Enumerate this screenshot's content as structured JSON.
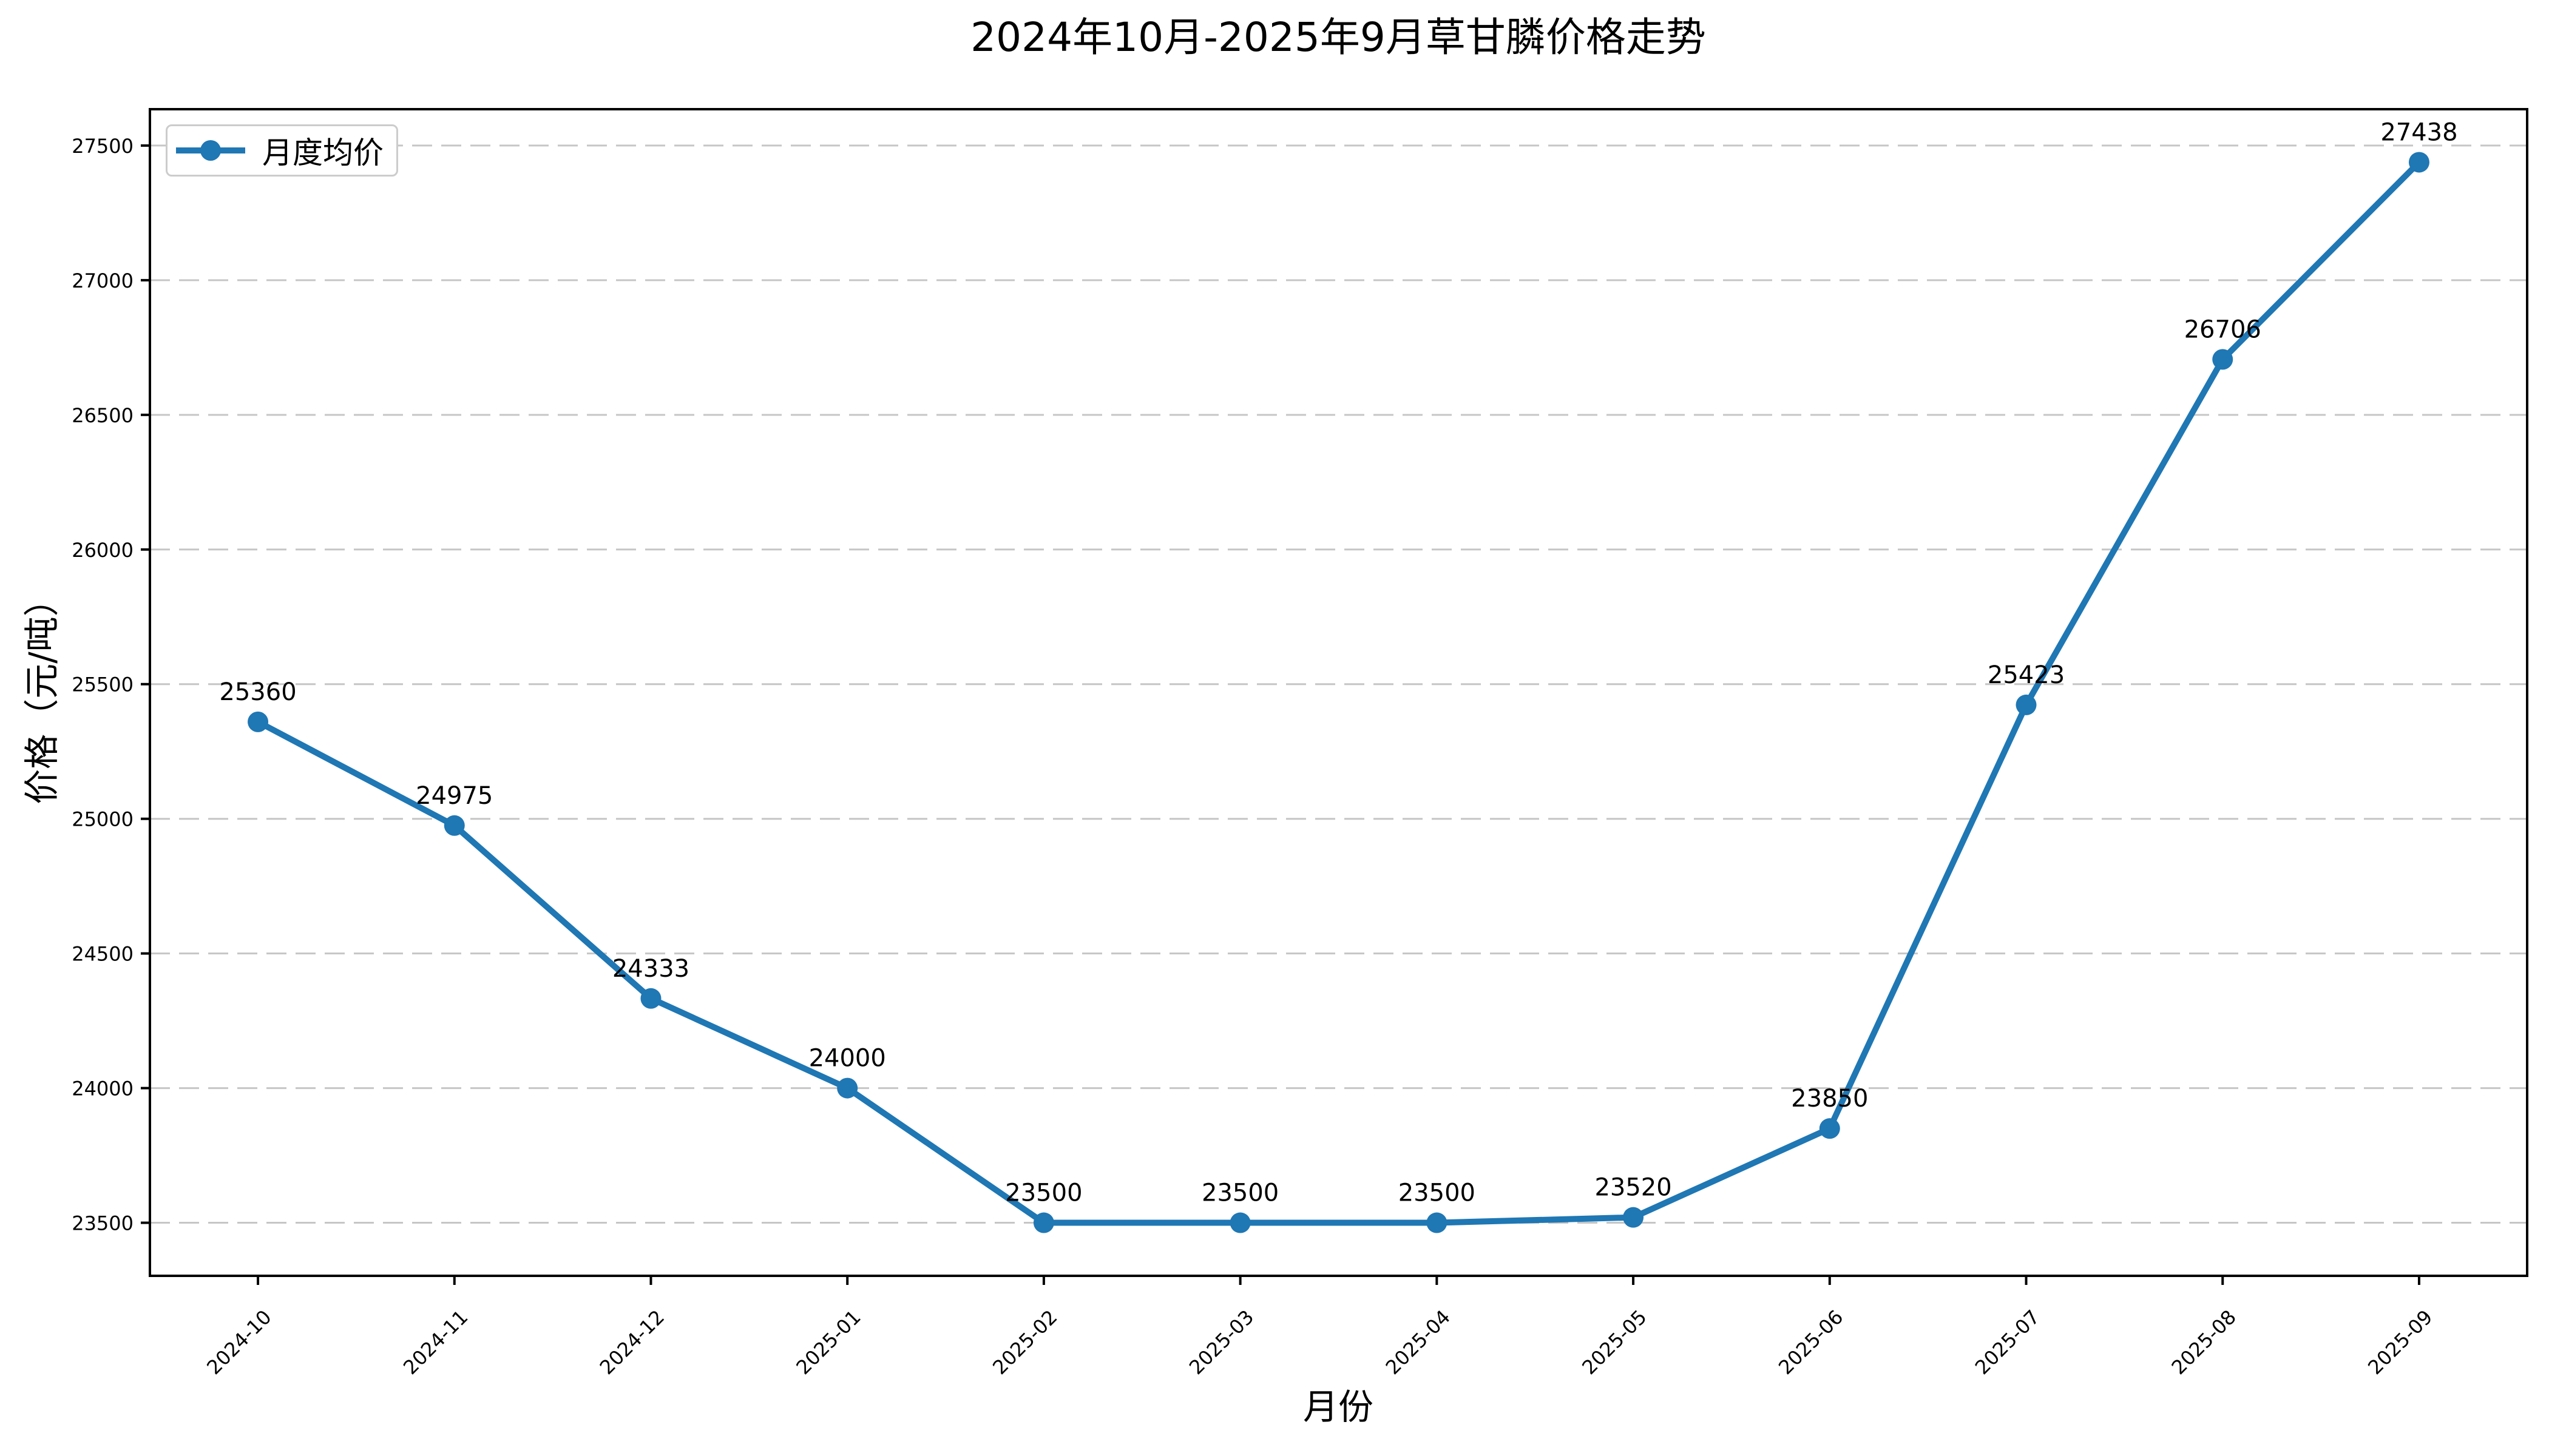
{
  "chart_data": {
    "type": "line",
    "title": "2024年10月-2025年9月草甘膦价格走势",
    "xlabel": "月份",
    "ylabel": "价格（元/吨）",
    "categories": [
      "2024-10",
      "2024-11",
      "2024-12",
      "2025-01",
      "2025-02",
      "2025-03",
      "2025-04",
      "2025-05",
      "2025-06",
      "2025-07",
      "2025-08",
      "2025-09"
    ],
    "series": [
      {
        "name": "月度均价",
        "values": [
          25360,
          24975,
          24333,
          24000,
          23500,
          23500,
          23500,
          23520,
          23850,
          25423,
          26706,
          27438
        ]
      }
    ],
    "data_labels": [
      "25360",
      "24975",
      "24333",
      "24000",
      "23500",
      "23500",
      "23500",
      "23520",
      "23850",
      "25423",
      "26706",
      "27438"
    ],
    "yticks": [
      23500,
      24000,
      24500,
      25000,
      25500,
      26000,
      26500,
      27000,
      27500
    ],
    "ylim": [
      23303,
      27635
    ],
    "grid": {
      "axis": "y",
      "style": "dashed",
      "color": "#c6c6c6"
    },
    "line_color": "#1f77b4",
    "marker": "circle",
    "legend": {
      "labels": [
        "月度均价"
      ],
      "position": "upper-left"
    }
  }
}
